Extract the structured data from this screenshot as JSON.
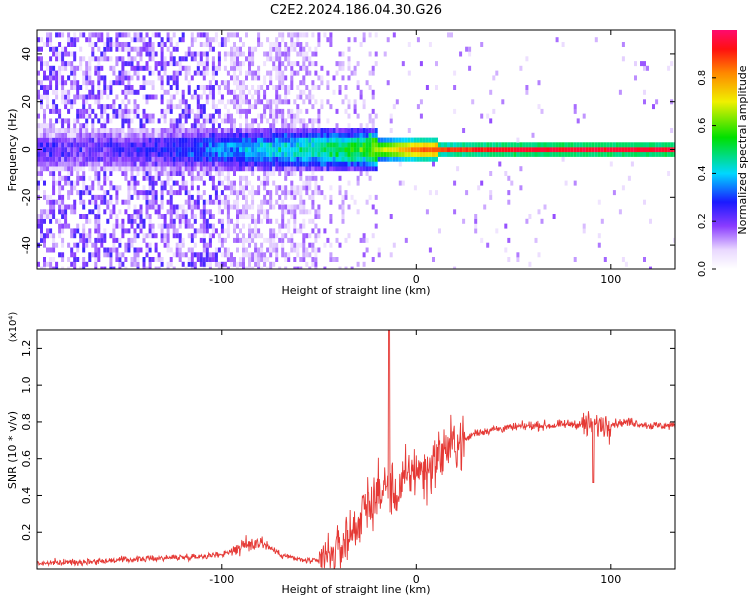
{
  "title": "C2E2.2024.186.04.30.G26",
  "chart_data": [
    {
      "type": "heatmap",
      "xlabel": "Height of straight line (km)",
      "ylabel": "Frequency (Hz)",
      "xlim": [
        -195,
        133
      ],
      "ylim": [
        -50,
        50
      ],
      "x_ticks": [
        -100,
        0,
        100
      ],
      "x_tick_labels": [
        "-100",
        "0",
        "100"
      ],
      "y_ticks": [
        -40,
        -20,
        0,
        20,
        40
      ],
      "y_tick_labels": [
        "-40",
        "-20",
        "0",
        "20",
        "40"
      ],
      "colorbar": {
        "label": "Normalized spectral amplitude",
        "range": [
          0,
          1
        ],
        "ticks": [
          0.0,
          0.2,
          0.4,
          0.6,
          0.8
        ],
        "tick_labels": [
          "0.0",
          "0.2",
          "0.4",
          "0.6",
          "0.8"
        ]
      },
      "description_points": [
        {
          "x": -150,
          "amp_center": 0.22
        },
        {
          "x": -100,
          "amp_center": 0.35
        },
        {
          "x": -60,
          "amp_center": 0.45
        },
        {
          "x": -30,
          "amp_center": 0.55
        },
        {
          "x": 0,
          "amp_center": 0.85
        },
        {
          "x": 50,
          "amp_center": 0.95
        },
        {
          "x": 130,
          "amp_center": 0.95
        }
      ]
    },
    {
      "type": "line",
      "xlabel": "Height of straight line (km)",
      "ylabel": "SNR (10 * v/v)",
      "y_scale_note": "(x10⁴)",
      "xlim": [
        -195,
        133
      ],
      "ylim": [
        0,
        1.3
      ],
      "x_ticks": [
        -100,
        0,
        100
      ],
      "x_tick_labels": [
        "-100",
        "0",
        "100"
      ],
      "y_ticks": [
        0.2,
        0.4,
        0.6,
        0.8,
        1.0,
        1.2
      ],
      "y_tick_labels": [
        "0.2",
        "0.4",
        "0.6",
        "0.8",
        "1.0",
        "1.2"
      ],
      "color": "#e53935",
      "series": [
        {
          "x": [
            -195,
            -170,
            -150,
            -130,
            -110,
            -100,
            -90,
            -80,
            -70,
            -60,
            -50,
            -45,
            -40,
            -35,
            -30,
            -25,
            -20,
            -15,
            -10,
            -5,
            0,
            5,
            10,
            15,
            20,
            25,
            30,
            40,
            50,
            60,
            70,
            80,
            90,
            100,
            110,
            120,
            133
          ],
          "y": [
            0.03,
            0.04,
            0.05,
            0.06,
            0.07,
            0.08,
            0.12,
            0.15,
            0.08,
            0.05,
            0.04,
            0.06,
            0.1,
            0.18,
            0.25,
            0.35,
            0.4,
            0.45,
            0.4,
            0.5,
            0.55,
            0.52,
            0.6,
            0.65,
            0.68,
            0.7,
            0.74,
            0.76,
            0.77,
            0.78,
            0.78,
            0.79,
            0.78,
            0.79,
            0.8,
            0.78,
            0.78
          ]
        }
      ]
    }
  ]
}
